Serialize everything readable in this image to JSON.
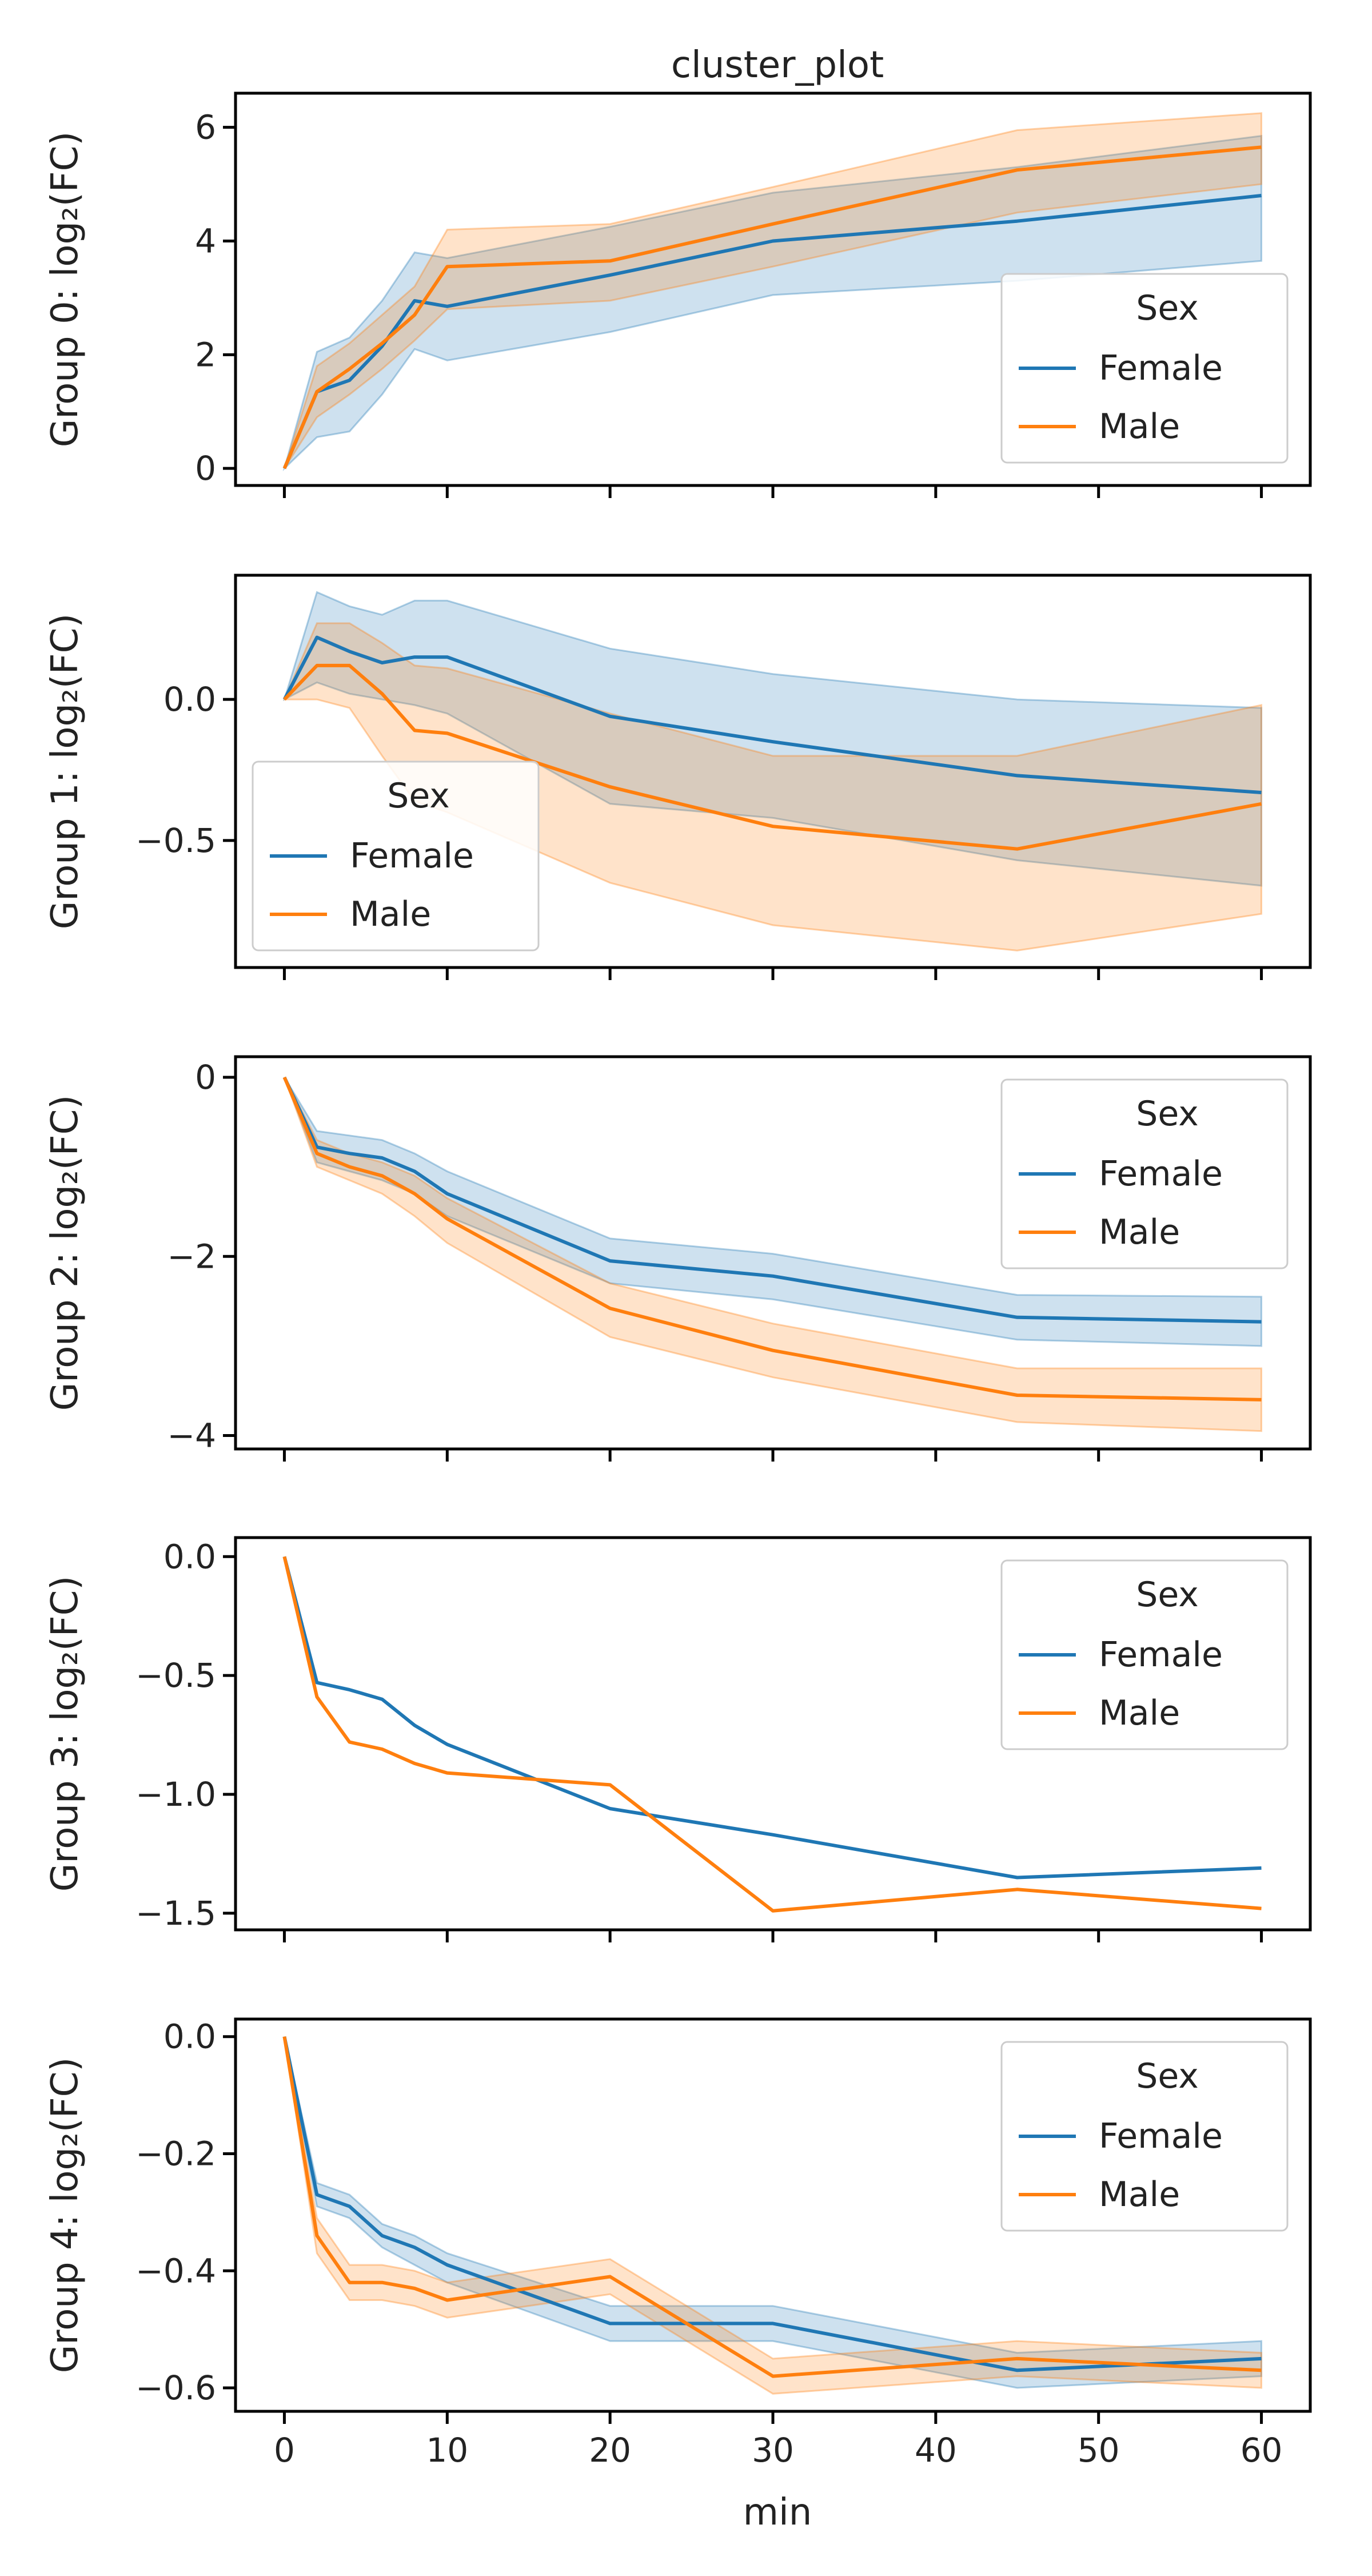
{
  "chart_data": {
    "type": "line",
    "title": "cluster_plot",
    "xlabel": "min",
    "x": [
      0,
      2,
      4,
      6,
      8,
      10,
      20,
      30,
      45,
      60
    ],
    "xlim": [
      -3,
      63
    ],
    "xticks": [
      0,
      10,
      20,
      30,
      40,
      50,
      60
    ],
    "legend": {
      "title": "Sex"
    },
    "colors": {
      "Female": "#1f77b4",
      "Male": "#ff7f0e"
    },
    "panels": [
      {
        "ylabel": "Group 0: log₂(FC)",
        "ylim": [
          -0.3,
          6.6
        ],
        "yticks": [
          0,
          2,
          4,
          6
        ],
        "ytick_labels": [
          "0",
          "2",
          "4",
          "6"
        ],
        "legend_position": "lower right",
        "series": [
          {
            "name": "Female",
            "values": [
              0,
              1.35,
              1.55,
              2.15,
              2.95,
              2.85,
              3.4,
              4.0,
              4.35,
              4.8
            ],
            "lower": [
              0,
              0.55,
              0.65,
              1.3,
              2.1,
              1.9,
              2.4,
              3.05,
              3.3,
              3.65
            ],
            "upper": [
              0,
              2.05,
              2.3,
              2.95,
              3.8,
              3.7,
              4.25,
              4.85,
              5.3,
              5.85
            ]
          },
          {
            "name": "Male",
            "values": [
              0,
              1.35,
              1.75,
              2.2,
              2.7,
              3.55,
              3.65,
              4.3,
              5.25,
              5.65
            ],
            "lower": [
              0,
              0.9,
              1.3,
              1.75,
              2.25,
              2.8,
              2.95,
              3.55,
              4.5,
              5.0
            ],
            "upper": [
              0,
              1.8,
              2.2,
              2.7,
              3.2,
              4.2,
              4.3,
              4.95,
              5.95,
              6.25
            ]
          }
        ]
      },
      {
        "ylabel": "Group 1: log₂(FC)",
        "ylim": [
          -0.95,
          0.44
        ],
        "yticks": [
          0.0,
          -0.5
        ],
        "ytick_labels": [
          "0.0",
          "−0.5"
        ],
        "legend_position": "lower left",
        "series": [
          {
            "name": "Female",
            "values": [
              0,
              0.22,
              0.17,
              0.13,
              0.15,
              0.15,
              -0.06,
              -0.15,
              -0.27,
              -0.33
            ],
            "lower": [
              0,
              0.06,
              0.02,
              0.0,
              -0.02,
              -0.05,
              -0.37,
              -0.42,
              -0.57,
              -0.66
            ],
            "upper": [
              0,
              0.38,
              0.33,
              0.3,
              0.35,
              0.35,
              0.18,
              0.09,
              0.0,
              -0.03
            ]
          },
          {
            "name": "Male",
            "values": [
              0,
              0.12,
              0.12,
              0.02,
              -0.11,
              -0.12,
              -0.31,
              -0.45,
              -0.53,
              -0.37
            ],
            "lower": [
              0,
              0.0,
              -0.03,
              -0.2,
              -0.36,
              -0.4,
              -0.65,
              -0.8,
              -0.89,
              -0.76
            ],
            "upper": [
              0,
              0.27,
              0.27,
              0.2,
              0.12,
              0.11,
              -0.05,
              -0.2,
              -0.2,
              -0.02
            ]
          }
        ]
      },
      {
        "ylabel": "Group 2: log₂(FC)",
        "ylim": [
          -4.15,
          0.23
        ],
        "yticks": [
          0,
          -2,
          -4
        ],
        "ytick_labels": [
          "0",
          "−2",
          "−4"
        ],
        "legend_position": "upper right",
        "series": [
          {
            "name": "Female",
            "values": [
              0,
              -0.78,
              -0.85,
              -0.9,
              -1.05,
              -1.3,
              -2.05,
              -2.22,
              -2.68,
              -2.73
            ],
            "lower": [
              0,
              -0.95,
              -1.05,
              -1.15,
              -1.3,
              -1.55,
              -2.3,
              -2.48,
              -2.93,
              -3.0
            ],
            "upper": [
              0,
              -0.6,
              -0.65,
              -0.7,
              -0.85,
              -1.05,
              -1.8,
              -1.97,
              -2.43,
              -2.45
            ]
          },
          {
            "name": "Male",
            "values": [
              0,
              -0.85,
              -1.0,
              -1.1,
              -1.3,
              -1.58,
              -2.58,
              -3.05,
              -3.55,
              -3.6
            ],
            "lower": [
              0,
              -1.0,
              -1.15,
              -1.3,
              -1.55,
              -1.85,
              -2.9,
              -3.35,
              -3.85,
              -3.95
            ],
            "upper": [
              0,
              -0.7,
              -0.85,
              -0.95,
              -1.1,
              -1.35,
              -2.3,
              -2.75,
              -3.25,
              -3.25
            ]
          }
        ]
      },
      {
        "ylabel": "Group 3: log₂(FC)",
        "ylim": [
          -1.57,
          0.08
        ],
        "yticks": [
          0.0,
          -0.5,
          -1.0,
          -1.5
        ],
        "ytick_labels": [
          "0.0",
          "−0.5",
          "−1.0",
          "−1.5"
        ],
        "legend_position": "upper right",
        "series": [
          {
            "name": "Female",
            "values": [
              0,
              -0.53,
              -0.56,
              -0.6,
              -0.71,
              -0.79,
              -1.06,
              -1.17,
              -1.35,
              -1.31
            ]
          },
          {
            "name": "Male",
            "values": [
              0,
              -0.59,
              -0.78,
              -0.81,
              -0.87,
              -0.91,
              -0.96,
              -1.49,
              -1.4,
              -1.48
            ]
          }
        ]
      },
      {
        "ylabel": "Group 4: log₂(FC)",
        "ylim": [
          -0.64,
          0.03
        ],
        "yticks": [
          0.0,
          -0.2,
          -0.4,
          -0.6
        ],
        "ytick_labels": [
          "0.0",
          "−0.2",
          "−0.4",
          "−0.6"
        ],
        "legend_position": "upper right",
        "series": [
          {
            "name": "Female",
            "values": [
              0,
              -0.27,
              -0.29,
              -0.34,
              -0.36,
              -0.39,
              -0.49,
              -0.49,
              -0.57,
              -0.55
            ],
            "lower": [
              0,
              -0.29,
              -0.31,
              -0.36,
              -0.39,
              -0.42,
              -0.52,
              -0.52,
              -0.6,
              -0.58
            ],
            "upper": [
              0,
              -0.25,
              -0.27,
              -0.32,
              -0.34,
              -0.37,
              -0.46,
              -0.46,
              -0.54,
              -0.52
            ]
          },
          {
            "name": "Male",
            "values": [
              0,
              -0.34,
              -0.42,
              -0.42,
              -0.43,
              -0.45,
              -0.41,
              -0.58,
              -0.55,
              -0.57
            ],
            "lower": [
              0,
              -0.37,
              -0.45,
              -0.45,
              -0.46,
              -0.48,
              -0.44,
              -0.61,
              -0.58,
              -0.6
            ],
            "upper": [
              0,
              -0.31,
              -0.39,
              -0.39,
              -0.4,
              -0.42,
              -0.38,
              -0.55,
              -0.52,
              -0.54
            ]
          }
        ]
      }
    ]
  }
}
